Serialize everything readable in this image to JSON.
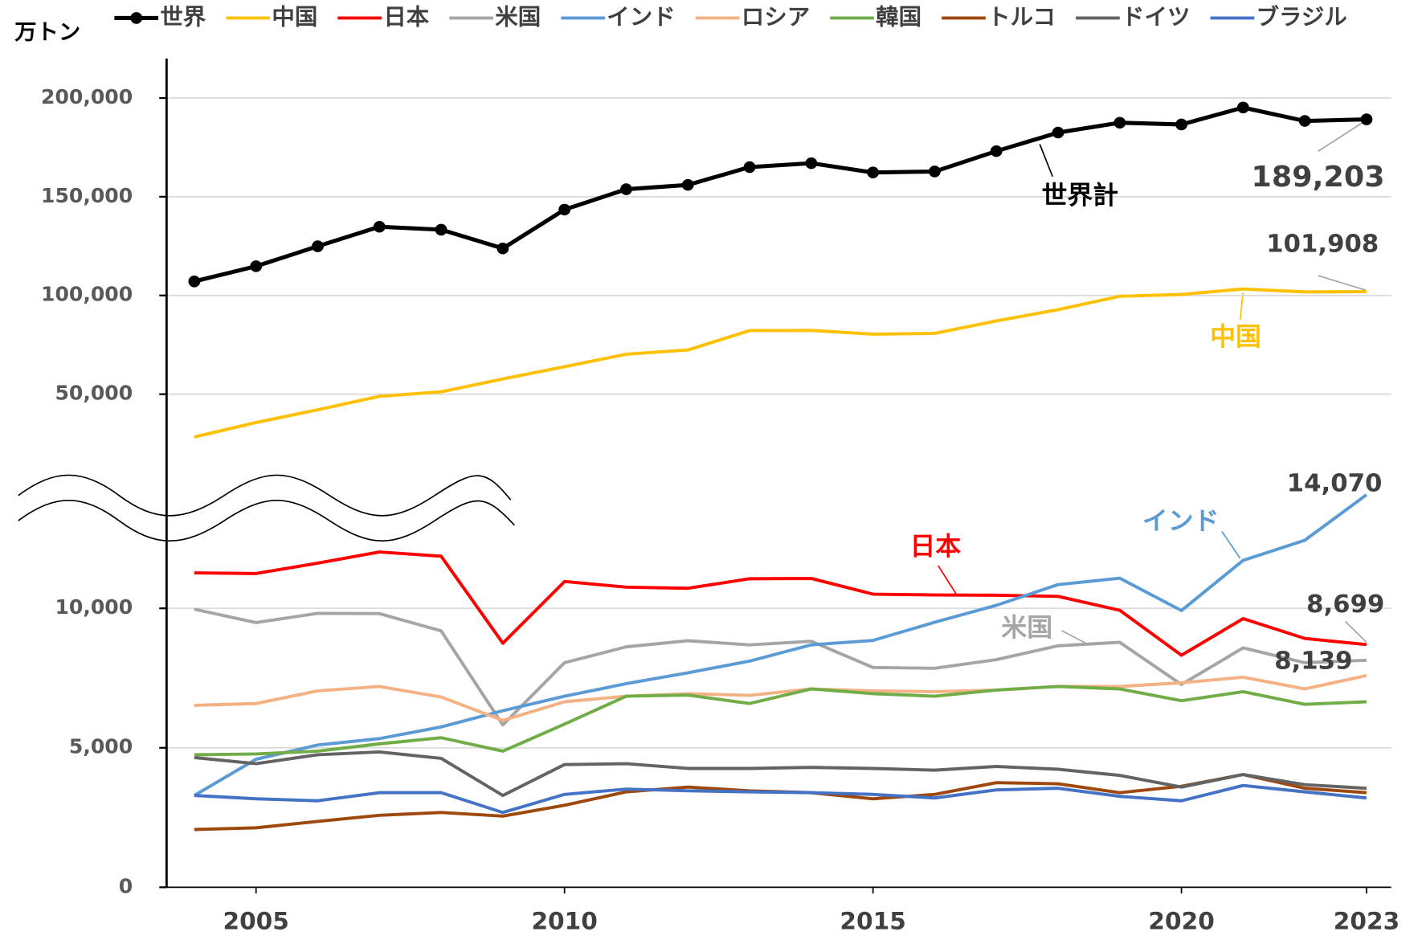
{
  "chart_data": {
    "type": "line",
    "y_label": "万トン",
    "x": [
      2004,
      2005,
      2006,
      2007,
      2008,
      2009,
      2010,
      2011,
      2012,
      2013,
      2014,
      2015,
      2016,
      2017,
      2018,
      2019,
      2020,
      2021,
      2022,
      2023
    ],
    "xlim": [
      2003.55,
      2023.4
    ],
    "xticks": [
      2005,
      2010,
      2015,
      2020,
      2023
    ],
    "axis_break": true,
    "upper_axis": {
      "ylim": [
        12850,
        220000
      ],
      "yticks": [
        {
          "value": 50000,
          "label": "50,000"
        },
        {
          "value": 100000,
          "label": "100,000"
        },
        {
          "value": 150000,
          "label": "150,000"
        },
        {
          "value": 200000,
          "label": "200,000"
        }
      ]
    },
    "lower_axis": {
      "ylim": [
        0,
        15050
      ],
      "yticks": [
        0,
        {
          "value": 5000,
          "label": "5,000"
        },
        {
          "value": 10000,
          "label": "10,000"
        }
      ]
    },
    "grid": true,
    "legend": "top",
    "series": [
      {
        "name": "世界",
        "color": "#000000",
        "segment": "upper",
        "markers": true,
        "values": [
          107100,
          114800,
          124900,
          134800,
          133300,
          123800,
          143500,
          153800,
          156000,
          165000,
          167000,
          162300,
          162800,
          173100,
          182500,
          187500,
          186600,
          195200,
          188400,
          189203
        ],
        "value_labels": [
          null,
          null,
          null,
          null,
          null,
          null,
          null,
          null,
          null,
          null,
          null,
          null,
          null,
          null,
          null,
          null,
          null,
          null,
          null,
          "189,203"
        ]
      },
      {
        "name": "中国",
        "color": "#ffc000",
        "segment": "upper",
        "values": [
          28300,
          35600,
          42100,
          48900,
          51200,
          57700,
          63900,
          70200,
          72400,
          82200,
          82300,
          80400,
          80800,
          87100,
          92800,
          99600,
          100500,
          103300,
          101800,
          101908
        ],
        "value_labels": [
          null,
          null,
          null,
          null,
          null,
          null,
          null,
          null,
          null,
          null,
          null,
          null,
          null,
          null,
          null,
          null,
          null,
          null,
          null,
          "101,908"
        ]
      },
      {
        "name": "日本",
        "color": "#ff0000",
        "segment": "lower",
        "values": [
          11270,
          11250,
          11620,
          12020,
          11870,
          8750,
          10960,
          10760,
          10720,
          11060,
          11070,
          10510,
          10480,
          10470,
          10430,
          9930,
          8320,
          9630,
          8920,
          8699
        ],
        "value_labels": [
          null,
          null,
          null,
          null,
          null,
          null,
          null,
          null,
          null,
          null,
          null,
          null,
          null,
          null,
          null,
          null,
          null,
          null,
          null,
          "8,699"
        ]
      },
      {
        "name": "米国",
        "color": "#a5a5a5",
        "segment": "lower",
        "values": [
          9970,
          9490,
          9820,
          9810,
          9190,
          5820,
          8050,
          8620,
          8840,
          8690,
          8820,
          7880,
          7850,
          8160,
          8660,
          8780,
          7270,
          8580,
          8050,
          8139
        ],
        "value_labels": [
          null,
          null,
          null,
          null,
          null,
          null,
          null,
          null,
          null,
          null,
          null,
          null,
          null,
          null,
          null,
          null,
          null,
          null,
          null,
          "8,139"
        ]
      },
      {
        "name": "インド",
        "color": "#5b9bd5",
        "segment": "lower",
        "values": [
          3290,
          4590,
          5100,
          5330,
          5750,
          6330,
          6850,
          7300,
          7690,
          8110,
          8690,
          8850,
          9500,
          10110,
          10850,
          11080,
          9920,
          11720,
          12440,
          14070
        ],
        "value_labels": [
          null,
          null,
          null,
          null,
          null,
          null,
          null,
          null,
          null,
          null,
          null,
          null,
          null,
          null,
          null,
          null,
          null,
          null,
          null,
          "14,070"
        ]
      },
      {
        "name": "ロシア",
        "color": "#f4b183",
        "segment": "lower",
        "values": [
          6520,
          6590,
          7040,
          7200,
          6820,
          5980,
          6650,
          6850,
          6940,
          6880,
          7110,
          7040,
          7010,
          7070,
          7200,
          7200,
          7330,
          7530,
          7110,
          7590
        ]
      },
      {
        "name": "韓国",
        "color": "#70ad47",
        "segment": "lower",
        "values": [
          4750,
          4780,
          4880,
          5140,
          5360,
          4880,
          5850,
          6850,
          6890,
          6590,
          7110,
          6940,
          6850,
          7070,
          7200,
          7110,
          6690,
          7010,
          6560,
          6650
        ]
      },
      {
        "name": "トルコ",
        "color": "#9e480e",
        "segment": "lower",
        "values": [
          2070,
          2130,
          2360,
          2580,
          2680,
          2550,
          2940,
          3420,
          3590,
          3460,
          3390,
          3170,
          3330,
          3750,
          3710,
          3390,
          3620,
          4040,
          3550,
          3390
        ]
      },
      {
        "name": "ドイツ",
        "color": "#636363",
        "segment": "lower",
        "values": [
          4650,
          4430,
          4750,
          4850,
          4620,
          3290,
          4400,
          4430,
          4260,
          4260,
          4300,
          4260,
          4200,
          4330,
          4230,
          4010,
          3590,
          4040,
          3680,
          3550
        ]
      },
      {
        "name": "ブラジル",
        "color": "#4472c4",
        "segment": "lower",
        "values": [
          3290,
          3170,
          3100,
          3390,
          3390,
          2680,
          3330,
          3520,
          3460,
          3420,
          3390,
          3330,
          3200,
          3490,
          3550,
          3260,
          3100,
          3650,
          3420,
          3200
        ]
      }
    ],
    "annotations": [
      {
        "text": "世界計",
        "color": "#000000"
      },
      {
        "text": "中国",
        "color": "#ffc000"
      },
      {
        "text": "日本",
        "color": "#ff0000"
      },
      {
        "text": "インド",
        "color": "#5b9bd5"
      },
      {
        "text": "米国",
        "color": "#a5a5a5"
      }
    ]
  }
}
